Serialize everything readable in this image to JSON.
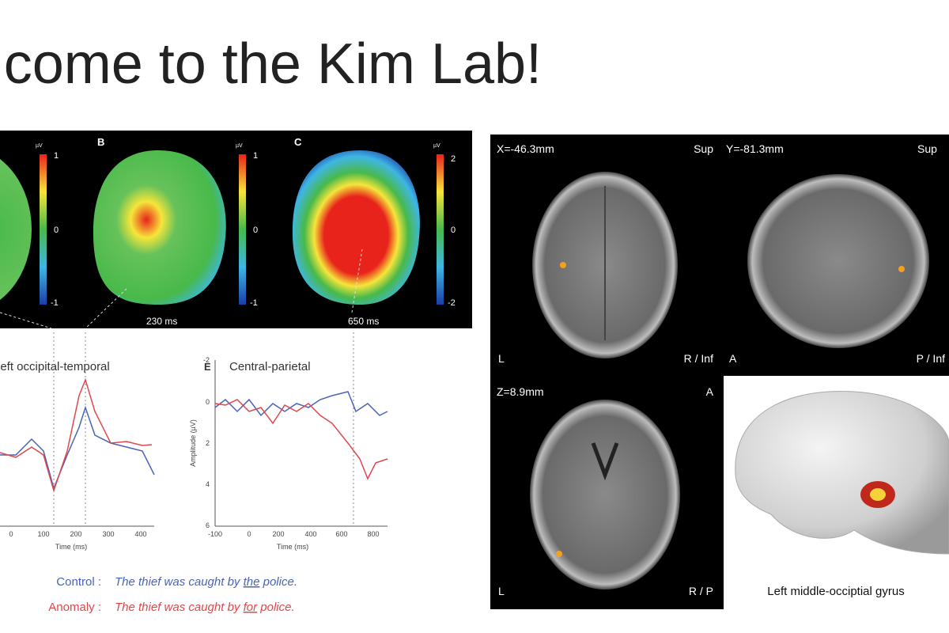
{
  "header": {
    "title": "Welcome to the Kim Lab!"
  },
  "erp_figure": {
    "topomaps": [
      {
        "unit": "µV",
        "scale": [
          "1",
          "0",
          "-1"
        ]
      },
      {
        "label": "B",
        "unit": "µV",
        "scale": [
          "1",
          "0",
          "-1"
        ],
        "caption": "230 ms"
      },
      {
        "label": "C",
        "unit": "µV",
        "scale": [
          "2",
          "0",
          "-2"
        ],
        "caption": "650 ms"
      }
    ],
    "plots": [
      {
        "title": "Left occipital-temporal",
        "xticks": [
          "0",
          "100",
          "200",
          "300",
          "400"
        ],
        "xlabel": "Time (ms)"
      },
      {
        "label": "E",
        "title": "Central-parietal",
        "yticks": [
          "-2",
          "0",
          "2",
          "4",
          "6"
        ],
        "ylabel": "Amplitude (µV)",
        "xticks": [
          "-100",
          "0",
          "200",
          "400",
          "600",
          "800"
        ],
        "xlabel": "Time (ms)"
      }
    ],
    "legend": [
      {
        "label": "Control :",
        "before": "The thief was caught by ",
        "word": "the",
        "after": " police."
      },
      {
        "label": "Anomaly :",
        "before": "The thief was caught by ",
        "word": "for",
        "after": " police."
      }
    ]
  },
  "mri_figure": {
    "views": [
      {
        "coord": "X=-46.3mm",
        "top_right": "Sup",
        "bottom_left": "L",
        "bottom_right": "R / Inf"
      },
      {
        "coord": "Y=-81.3mm",
        "top_right": "Sup",
        "bottom_left": "A",
        "bottom_right": "P / Inf"
      },
      {
        "coord": "Z=8.9mm",
        "top_right": "A",
        "bottom_left": "L",
        "bottom_right": "R / P"
      }
    ],
    "brain_caption": "Left middle-occiptial gyrus"
  }
}
